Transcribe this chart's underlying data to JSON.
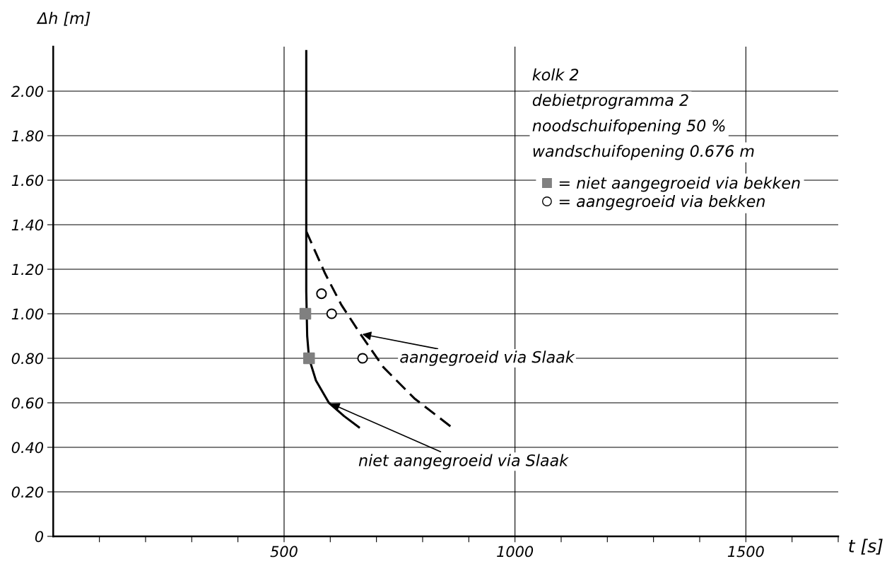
{
  "chart_data": {
    "type": "line",
    "xlabel": "t [s]",
    "ylabel": "Δh [m]",
    "xlim": [
      0,
      1700
    ],
    "ylim": [
      0,
      2.2
    ],
    "xticks": [
      {
        "value": 100,
        "label": null
      },
      {
        "value": 200,
        "label": null
      },
      {
        "value": 300,
        "label": null
      },
      {
        "value": 400,
        "label": null
      },
      500,
      {
        "value": 600,
        "label": null
      },
      {
        "value": 700,
        "label": null
      },
      {
        "value": 800,
        "label": null
      },
      {
        "value": 900,
        "label": null
      },
      1000,
      {
        "value": 1100,
        "label": null
      },
      {
        "value": 1200,
        "label": null
      },
      {
        "value": 1300,
        "label": null
      },
      {
        "value": 1400,
        "label": null
      },
      1500,
      {
        "value": 1600,
        "label": null
      },
      {
        "value": 1700,
        "label": null
      }
    ],
    "yticks": [
      0,
      {
        "value": 0.2,
        "label": "0.20"
      },
      {
        "value": 0.4,
        "label": "0.40"
      },
      {
        "value": 0.6,
        "label": "0.60"
      },
      {
        "value": 0.8,
        "label": "0.80"
      },
      {
        "value": 1.0,
        "label": "1.00"
      },
      {
        "value": 1.2,
        "label": "1.20"
      },
      {
        "value": 1.4,
        "label": "1.40"
      },
      {
        "value": 1.6,
        "label": "1.60"
      },
      {
        "value": 1.8,
        "label": "1.80"
      },
      {
        "value": 2.0,
        "label": "2.00"
      }
    ],
    "grid": true,
    "legend": "top right",
    "series": [
      {
        "color": "#000000",
        "line_style": "solid",
        "marker": "none",
        "x": [
          548,
          548,
          548,
          548,
          550,
          554,
          569,
          597,
          630,
          662
        ],
        "values": [
          2.18,
          1.6,
          1.4,
          1.1,
          0.9,
          0.8,
          0.7,
          0.6,
          0.54,
          0.49
        ]
      },
      {
        "color": "#000000",
        "line_style": "dashed",
        "marker": "none",
        "x": [
          548,
          589,
          624,
          665,
          715,
          782,
          863
        ],
        "values": [
          1.37,
          1.18,
          1.04,
          0.91,
          0.76,
          0.62,
          0.49
        ]
      },
      {
        "type": "scatter",
        "name": "= niet aangegroeid via bekken",
        "color": "#808080",
        "marker": "square",
        "x": [
          546,
          554
        ],
        "values": [
          1.0,
          0.8
        ]
      },
      {
        "type": "scatter",
        "name": "= aangegroeid via bekken",
        "color": "#000000",
        "marker": "circle",
        "x": [
          581,
          603,
          670
        ],
        "values": [
          1.09,
          1.0,
          0.8
        ]
      }
    ],
    "annotations": [
      "kolk 2",
      "debietprogramma 2",
      "noodschuifopening 50 %",
      "wandschuifopening 0.676 m",
      {
        "text": "aangegroeid via Slaak",
        "x": 665,
        "y": 0.91
      },
      {
        "text": "niet aangegroeid via Slaak",
        "x": 597,
        "y": 0.6
      }
    ]
  }
}
